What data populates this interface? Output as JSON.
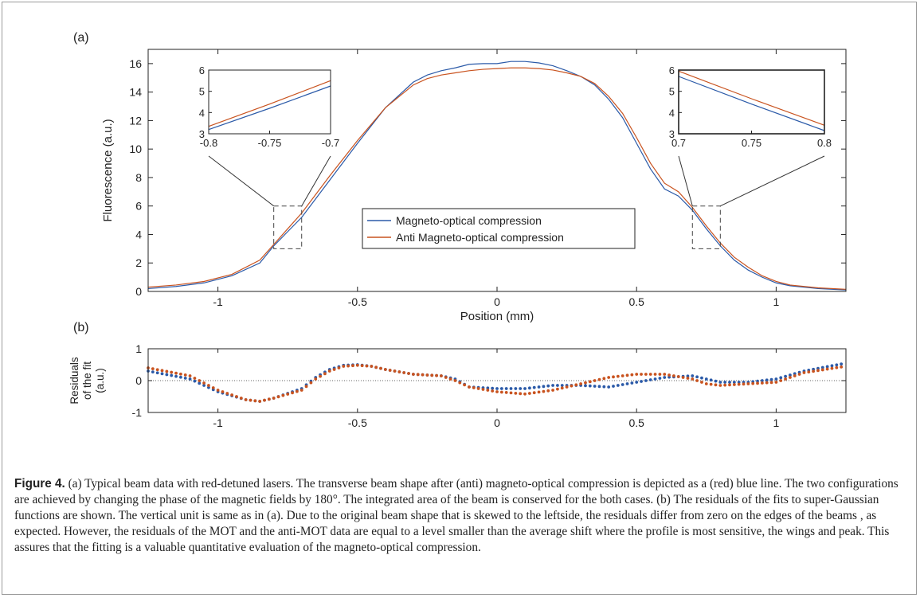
{
  "figure": {
    "caption_label": "Figure 4.",
    "caption_text": " (a) Typical beam data with red-detuned lasers. The transverse beam shape after (anti) magneto-optical compression is depicted as a (red) blue line. The two configurations are achieved by changing the phase of the magnetic fields by 180°. The integrated area of the beam is conserved for the both cases. (b) The residuals of the fits to super-Gaussian functions are shown. The vertical unit is same as in (a). Due to the original beam shape that is skewed to the leftside, the residuals differ from zero on the edges of the beams , as expected. However, the residuals of the MOT and the anti-MOT data are equal to a level smaller than the average shift where the profile is most sensitive, the wings and peak. This assures that the fitting is a valuable quantitative evaluation of the magneto-optical compression."
  },
  "colors": {
    "blue": "#2b5aa8",
    "red": "#c9531f",
    "axis": "#222222"
  },
  "chart_data": [
    {
      "id": "panel_a",
      "type": "line",
      "panel_label": "(a)",
      "xlabel": "Position (mm)",
      "ylabel": "Fluorescence (a.u.)",
      "xlim": [
        -1.25,
        1.25
      ],
      "ylim": [
        0,
        17
      ],
      "xticks": [
        -1,
        -0.5,
        0,
        0.5,
        1
      ],
      "xtick_labels": [
        "-1",
        "-0.5",
        "0",
        "0.5",
        "1"
      ],
      "yticks": [
        0,
        2,
        4,
        6,
        8,
        10,
        12,
        14,
        16
      ],
      "ytick_labels": [
        "0",
        "2",
        "4",
        "6",
        "8",
        "10",
        "12",
        "14",
        "16"
      ],
      "legend": [
        "Magneto-optical compression",
        "Anti Magneto-optical compression"
      ],
      "legend_position": "lower-center",
      "series": [
        {
          "name": "Magneto-optical compression",
          "color": "blue",
          "x": [
            -1.25,
            -1.15,
            -1.05,
            -0.95,
            -0.85,
            -0.8,
            -0.75,
            -0.7,
            -0.6,
            -0.5,
            -0.4,
            -0.3,
            -0.25,
            -0.2,
            -0.15,
            -0.1,
            -0.05,
            0,
            0.05,
            0.1,
            0.15,
            0.2,
            0.25,
            0.3,
            0.35,
            0.4,
            0.45,
            0.5,
            0.55,
            0.6,
            0.65,
            0.7,
            0.75,
            0.8,
            0.85,
            0.9,
            0.95,
            1.0,
            1.05,
            1.15,
            1.25
          ],
          "y": [
            0.2,
            0.35,
            0.6,
            1.1,
            2.0,
            3.2,
            4.2,
            5.2,
            7.8,
            10.4,
            12.9,
            14.7,
            15.2,
            15.5,
            15.7,
            15.95,
            16.0,
            16.0,
            16.15,
            16.15,
            16.05,
            15.85,
            15.5,
            15.1,
            14.5,
            13.5,
            12.2,
            10.4,
            8.6,
            7.2,
            6.7,
            5.7,
            4.4,
            3.2,
            2.2,
            1.5,
            1.0,
            0.6,
            0.4,
            0.2,
            0.1
          ]
        },
        {
          "name": "Anti Magneto-optical compression",
          "color": "red",
          "x": [
            -1.25,
            -1.15,
            -1.05,
            -0.95,
            -0.85,
            -0.8,
            -0.75,
            -0.7,
            -0.6,
            -0.5,
            -0.4,
            -0.3,
            -0.25,
            -0.2,
            -0.15,
            -0.1,
            -0.05,
            0,
            0.05,
            0.1,
            0.15,
            0.2,
            0.25,
            0.3,
            0.35,
            0.4,
            0.45,
            0.5,
            0.55,
            0.6,
            0.65,
            0.7,
            0.75,
            0.8,
            0.85,
            0.9,
            0.95,
            1.0,
            1.05,
            1.15,
            1.25
          ],
          "y": [
            0.3,
            0.45,
            0.7,
            1.2,
            2.2,
            3.3,
            4.4,
            5.5,
            8.1,
            10.6,
            12.9,
            14.5,
            14.95,
            15.2,
            15.35,
            15.5,
            15.6,
            15.65,
            15.7,
            15.7,
            15.65,
            15.55,
            15.35,
            15.1,
            14.6,
            13.7,
            12.5,
            10.8,
            9.0,
            7.6,
            7.0,
            5.9,
            4.6,
            3.4,
            2.4,
            1.7,
            1.1,
            0.7,
            0.45,
            0.25,
            0.15
          ]
        }
      ],
      "insets": [
        {
          "id": "inset_left",
          "xlim": [
            -0.8,
            -0.7
          ],
          "ylim": [
            3,
            6
          ],
          "xtick_labels": [
            "-0.8",
            "-0.75",
            "-0.7"
          ],
          "xticks": [
            -0.8,
            -0.75,
            -0.7
          ],
          "ytick_labels": [
            "3",
            "4",
            "5",
            "6"
          ],
          "yticks": [
            3,
            4,
            5,
            6
          ],
          "series": [
            {
              "color": "blue",
              "x": [
                -0.8,
                -0.75,
                -0.7
              ],
              "y": [
                3.2,
                4.2,
                5.25
              ]
            },
            {
              "color": "red",
              "x": [
                -0.8,
                -0.75,
                -0.7
              ],
              "y": [
                3.35,
                4.4,
                5.5
              ]
            }
          ]
        },
        {
          "id": "inset_right",
          "xlim": [
            0.7,
            0.8
          ],
          "ylim": [
            3,
            6
          ],
          "xtick_labels": [
            "0.7",
            "0.75",
            "0.8"
          ],
          "xticks": [
            0.7,
            0.75,
            0.8
          ],
          "ytick_labels": [
            "3",
            "4",
            "5",
            "6"
          ],
          "yticks": [
            3,
            4,
            5,
            6
          ],
          "series": [
            {
              "color": "blue",
              "x": [
                0.7,
                0.75,
                0.8
              ],
              "y": [
                5.7,
                4.4,
                3.15
              ]
            },
            {
              "color": "red",
              "x": [
                0.7,
                0.75,
                0.8
              ],
              "y": [
                5.95,
                4.65,
                3.4
              ]
            }
          ]
        }
      ]
    },
    {
      "id": "panel_b",
      "type": "scatter",
      "panel_label": "(b)",
      "xlabel": "",
      "ylabel": [
        "Residuals",
        "of the fit",
        "(a.u.)"
      ],
      "xlim": [
        -1.25,
        1.25
      ],
      "ylim": [
        -1,
        1
      ],
      "xticks": [
        -1,
        -0.5,
        0,
        0.5,
        1
      ],
      "xtick_labels": [
        "-1",
        "-0.5",
        "0",
        "0.5",
        "1"
      ],
      "yticks": [
        -1,
        0,
        1
      ],
      "ytick_labels": [
        "-1",
        "0",
        "1"
      ],
      "zero_line": true,
      "series": [
        {
          "color": "blue",
          "x": [
            -1.25,
            -1.1,
            -1.0,
            -0.9,
            -0.85,
            -0.8,
            -0.7,
            -0.65,
            -0.6,
            -0.55,
            -0.5,
            -0.45,
            -0.4,
            -0.3,
            -0.2,
            -0.15,
            -0.1,
            0.0,
            0.1,
            0.2,
            0.3,
            0.4,
            0.5,
            0.6,
            0.7,
            0.75,
            0.8,
            0.9,
            1.0,
            1.1,
            1.25
          ],
          "y": [
            0.3,
            0.05,
            -0.35,
            -0.6,
            -0.65,
            -0.55,
            -0.25,
            0.1,
            0.35,
            0.48,
            0.5,
            0.45,
            0.35,
            0.2,
            0.15,
            0.05,
            -0.2,
            -0.25,
            -0.25,
            -0.15,
            -0.15,
            -0.2,
            -0.05,
            0.1,
            0.15,
            0.05,
            -0.05,
            -0.05,
            0.05,
            0.3,
            0.55
          ]
        },
        {
          "color": "red",
          "x": [
            -1.25,
            -1.1,
            -1.0,
            -0.9,
            -0.85,
            -0.8,
            -0.7,
            -0.65,
            -0.6,
            -0.55,
            -0.5,
            -0.45,
            -0.4,
            -0.3,
            -0.2,
            -0.15,
            -0.1,
            0.0,
            0.1,
            0.2,
            0.3,
            0.4,
            0.5,
            0.6,
            0.7,
            0.75,
            0.8,
            0.9,
            1.0,
            1.1,
            1.25
          ],
          "y": [
            0.4,
            0.15,
            -0.3,
            -0.6,
            -0.65,
            -0.55,
            -0.3,
            0.05,
            0.3,
            0.45,
            0.48,
            0.45,
            0.35,
            0.2,
            0.15,
            0.0,
            -0.2,
            -0.35,
            -0.42,
            -0.3,
            -0.1,
            0.1,
            0.2,
            0.2,
            0.05,
            -0.1,
            -0.15,
            -0.1,
            -0.05,
            0.25,
            0.45
          ]
        }
      ]
    }
  ]
}
